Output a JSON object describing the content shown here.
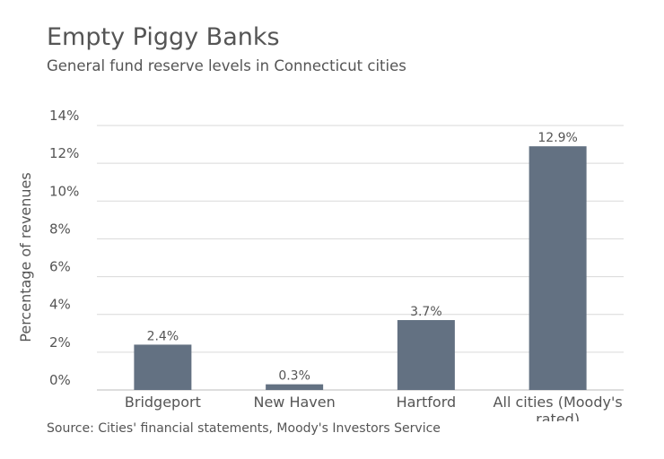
{
  "chart_data": {
    "type": "bar",
    "title": "Empty Piggy Banks",
    "subtitle": "General fund reserve levels in Connecticut cities",
    "xlabel": "",
    "ylabel": "Percentage of revenues",
    "categories": [
      "Bridgeport",
      "New Haven",
      "Hartford",
      "All cities (Moody's rated)"
    ],
    "category_label_lines": [
      [
        "Bridgeport"
      ],
      [
        "New Haven"
      ],
      [
        "Hartford"
      ],
      [
        "All cities (Moody's",
        "rated)"
      ]
    ],
    "values": [
      2.4,
      0.3,
      3.7,
      12.9
    ],
    "value_labels": [
      "2.4%",
      "0.3%",
      "3.7%",
      "12.9%"
    ],
    "y_ticks": [
      "0%",
      "2%",
      "4%",
      "6%",
      "8%",
      "10%",
      "12%",
      "14%"
    ],
    "ylim": [
      0,
      14
    ],
    "grid": true,
    "bar_color": "#637182",
    "grid_color": "#d9d9d9",
    "source": "Source: Cities' financial statements, Moody's Investors Service"
  }
}
